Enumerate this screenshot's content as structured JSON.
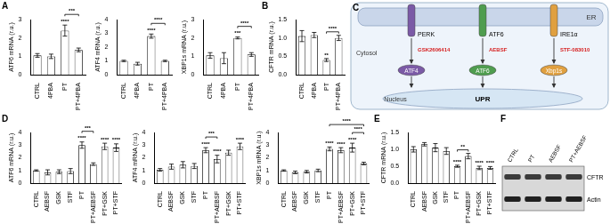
{
  "chart_data": [
    {
      "type": "bar",
      "panel": "A",
      "y_label": "ATF6 mRNA (r.u.)",
      "categories": [
        "CTRL",
        "4PBA",
        "PT",
        "PT+4PBA"
      ],
      "values": [
        1.05,
        1.0,
        2.4,
        1.35
      ],
      "errors": [
        0.1,
        0.12,
        0.3,
        0.1
      ],
      "color": "#ffffff",
      "ylim": [
        0,
        3
      ],
      "yticks": [
        0,
        1,
        2,
        3
      ],
      "grid": false,
      "annotations": [
        {
          "category": "PT",
          "text": "****"
        }
      ],
      "brackets": [
        {
          "from": "PT",
          "to": "PT+4PBA",
          "text": "***"
        }
      ]
    },
    {
      "type": "bar",
      "y_label": "ATF4 mRNA (r.u.)",
      "categories": [
        "CTRL",
        "4PBA",
        "PT",
        "PT+4PBA"
      ],
      "values": [
        1.0,
        0.8,
        2.8,
        1.0
      ],
      "errors": [
        0.05,
        0.1,
        0.15,
        0.05
      ],
      "color": "#ffffff",
      "ylim": [
        0,
        4
      ],
      "yticks": [
        0,
        1,
        2,
        3,
        4
      ],
      "grid": false,
      "annotations": [
        {
          "category": "PT",
          "text": "****"
        }
      ],
      "brackets": [
        {
          "from": "PT",
          "to": "PT+4PBA",
          "text": "****"
        }
      ]
    },
    {
      "type": "bar",
      "y_label": "XBP1s mRNA (r.u.)",
      "categories": [
        "CTRL",
        "4PBA",
        "PT",
        "PT+4PBA"
      ],
      "values": [
        1.05,
        0.9,
        2.0,
        1.1
      ],
      "errors": [
        0.15,
        0.3,
        0.05,
        0.1
      ],
      "color": "#ffffff",
      "ylim": [
        0,
        3
      ],
      "yticks": [
        0,
        1,
        2,
        3
      ],
      "grid": false,
      "annotations": [
        {
          "category": "PT",
          "text": "***"
        }
      ],
      "brackets": [
        {
          "from": "PT",
          "to": "PT+4PBA",
          "text": "****"
        }
      ]
    },
    {
      "type": "bar",
      "panel": "B",
      "y_label": "CFTR mRNA (r.u.)",
      "categories": [
        "CTRL",
        "4PBA",
        "PT",
        "PT+4PBA"
      ],
      "values": [
        1.05,
        1.08,
        0.4,
        1.0
      ],
      "errors": [
        0.15,
        0.07,
        0.04,
        0.07
      ],
      "color": "#ffffff",
      "ylim": [
        0,
        1.5
      ],
      "yticks": [
        {
          "value": 0,
          "label": "0.0"
        },
        {
          "value": 0.5,
          "label": "0.5"
        },
        {
          "value": 1,
          "label": "1.0"
        },
        {
          "value": 1.5,
          "label": "1.5"
        }
      ],
      "grid": false,
      "annotations": [
        {
          "category": "PT",
          "text": "**"
        }
      ],
      "brackets": [
        {
          "from": "PT",
          "to": "PT+4PBA",
          "text": "****"
        }
      ]
    },
    {
      "type": "bar",
      "panel": "D",
      "y_label": "ATF6 mRNA (r.u.)",
      "categories": [
        "CTRL",
        "AEBSF",
        "GSK",
        "STF",
        "PT",
        "PT+AEBSF",
        "PT+GSK",
        "PT+STF"
      ],
      "values": [
        1.0,
        0.85,
        0.9,
        0.95,
        3.0,
        1.5,
        2.9,
        2.8
      ],
      "errors": [
        0.05,
        0.2,
        0.15,
        0.2,
        0.25,
        0.1,
        0.25,
        0.3
      ],
      "color": "#ffffff",
      "ylim": [
        0,
        4
      ],
      "yticks": [
        0,
        1,
        2,
        3,
        4
      ],
      "grid": false,
      "annotations": [
        {
          "category": "PT",
          "text": "****"
        },
        {
          "category": "PT+GSK",
          "text": "****"
        },
        {
          "category": "PT+STF",
          "text": "****"
        }
      ],
      "brackets": [
        {
          "from": "PT",
          "to": "PT+AEBSF",
          "text": "***"
        }
      ]
    },
    {
      "type": "bar",
      "y_label": "ATF4 mRNA (r.u.)",
      "categories": [
        "CTRL",
        "AEBSF",
        "GSK",
        "STF",
        "PT",
        "PT+AEBSF",
        "PT+GSK",
        "PT+STF"
      ],
      "values": [
        1.05,
        1.3,
        1.45,
        1.35,
        2.6,
        1.9,
        2.4,
        2.9
      ],
      "errors": [
        0.1,
        0.2,
        0.25,
        0.2,
        0.2,
        0.3,
        0.2,
        0.25
      ],
      "color": "#ffffff",
      "ylim": [
        0,
        4
      ],
      "yticks": [
        0,
        1,
        2,
        3,
        4
      ],
      "grid": false,
      "annotations": [
        {
          "category": "PT",
          "text": "****"
        },
        {
          "category": "PT+AEBSF",
          "text": "****"
        },
        {
          "category": "PT+STF",
          "text": "****"
        }
      ],
      "brackets": [
        {
          "from": "PT",
          "to": "PT+AEBSF",
          "text": "***"
        }
      ]
    },
    {
      "type": "bar",
      "y_label": "XBP1s mRNA (r.u.)",
      "categories": [
        "CTRL",
        "AEBSF",
        "GSK",
        "STF",
        "PT",
        "PT+AEBSF",
        "PT+GSK",
        "PT+STF"
      ],
      "values": [
        1.0,
        0.85,
        0.9,
        1.0,
        2.7,
        2.6,
        2.8,
        1.55
      ],
      "errors": [
        0.05,
        0.1,
        0.1,
        0.1,
        0.15,
        0.2,
        0.35,
        0.1
      ],
      "color": "#ffffff",
      "ylim": [
        0,
        4
      ],
      "yticks": [
        0,
        1,
        2,
        3,
        4
      ],
      "grid": false,
      "annotations": [
        {
          "category": "PT",
          "text": "****"
        },
        {
          "category": "PT+AEBSF",
          "text": "****"
        },
        {
          "category": "PT+GSK",
          "text": "****"
        }
      ],
      "brackets": [
        {
          "from": "PT+GSK",
          "to": "PT+STF",
          "text": "****"
        },
        {
          "from": "PT",
          "to": "PT+STF",
          "text": "****"
        }
      ]
    },
    {
      "type": "bar",
      "panel": "E",
      "y_label": "CFTR mRNA (r.u.)",
      "categories": [
        "CTRL",
        "AEBSF",
        "GSK",
        "STF",
        "PT",
        "PT+AEBSF",
        "PT+GSK",
        "PT+STF"
      ],
      "values": [
        1.0,
        1.15,
        1.05,
        0.95,
        0.5,
        0.8,
        0.45,
        0.45
      ],
      "errors": [
        0.08,
        0.05,
        0.12,
        0.1,
        0.03,
        0.08,
        0.05,
        0.04
      ],
      "color": "#ffffff",
      "ylim": [
        0,
        1.5
      ],
      "yticks": [
        {
          "value": 0,
          "label": "0.0"
        },
        {
          "value": 0.5,
          "label": "0.5"
        },
        {
          "value": 1,
          "label": "1.0"
        },
        {
          "value": 1.5,
          "label": "1.5"
        }
      ],
      "grid": false,
      "annotations": [
        {
          "category": "PT",
          "text": "****"
        },
        {
          "category": "PT+GSK",
          "text": "****"
        },
        {
          "category": "PT+STF",
          "text": "****"
        }
      ],
      "brackets": [
        {
          "from": "PT",
          "to": "PT+AEBSF",
          "text": "**"
        }
      ]
    }
  ],
  "diagram": {
    "panel": "C",
    "compartments": {
      "er": "ER",
      "cytosol": "Cytosol",
      "nucleus": "Nucleus"
    },
    "sensors": [
      {
        "label": "PERK",
        "inhibitor": "GSK2606414",
        "product": "ATF4"
      },
      {
        "label": "ATF6",
        "inhibitor": "AEBSF",
        "product": "ATF6"
      },
      {
        "label": "IRE1α",
        "inhibitor": "STF-083010",
        "product": "Xbp1s"
      }
    ],
    "response": "UPR"
  },
  "blot": {
    "panel": "F",
    "lanes": [
      "CTRL",
      "PT",
      "AEBSF",
      "PT+AEBSF"
    ],
    "rows": [
      "CFTR",
      "Actin"
    ]
  }
}
